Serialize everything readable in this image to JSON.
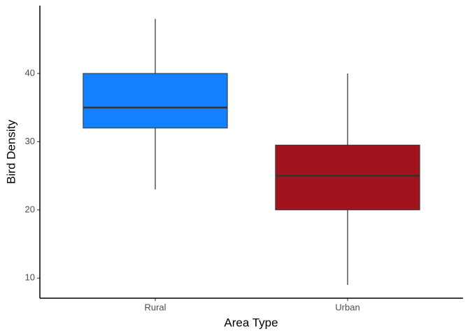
{
  "chart_data": {
    "type": "box",
    "x_label": "Area Type",
    "y_label": "Bird Density",
    "categories": [
      "Rural",
      "Urban"
    ],
    "boxes": [
      {
        "whisker_low": 23,
        "q1": 32,
        "median": 35,
        "q3": 40,
        "whisker_high": 48,
        "color": "#1380ff"
      },
      {
        "whisker_low": 9,
        "q1": 20,
        "median": 25,
        "q3": 29.5,
        "whisker_high": 40,
        "color": "#a0141e"
      }
    ],
    "ylim": [
      7.05,
      49.95
    ],
    "yticks": [
      10,
      20,
      30,
      40
    ]
  }
}
